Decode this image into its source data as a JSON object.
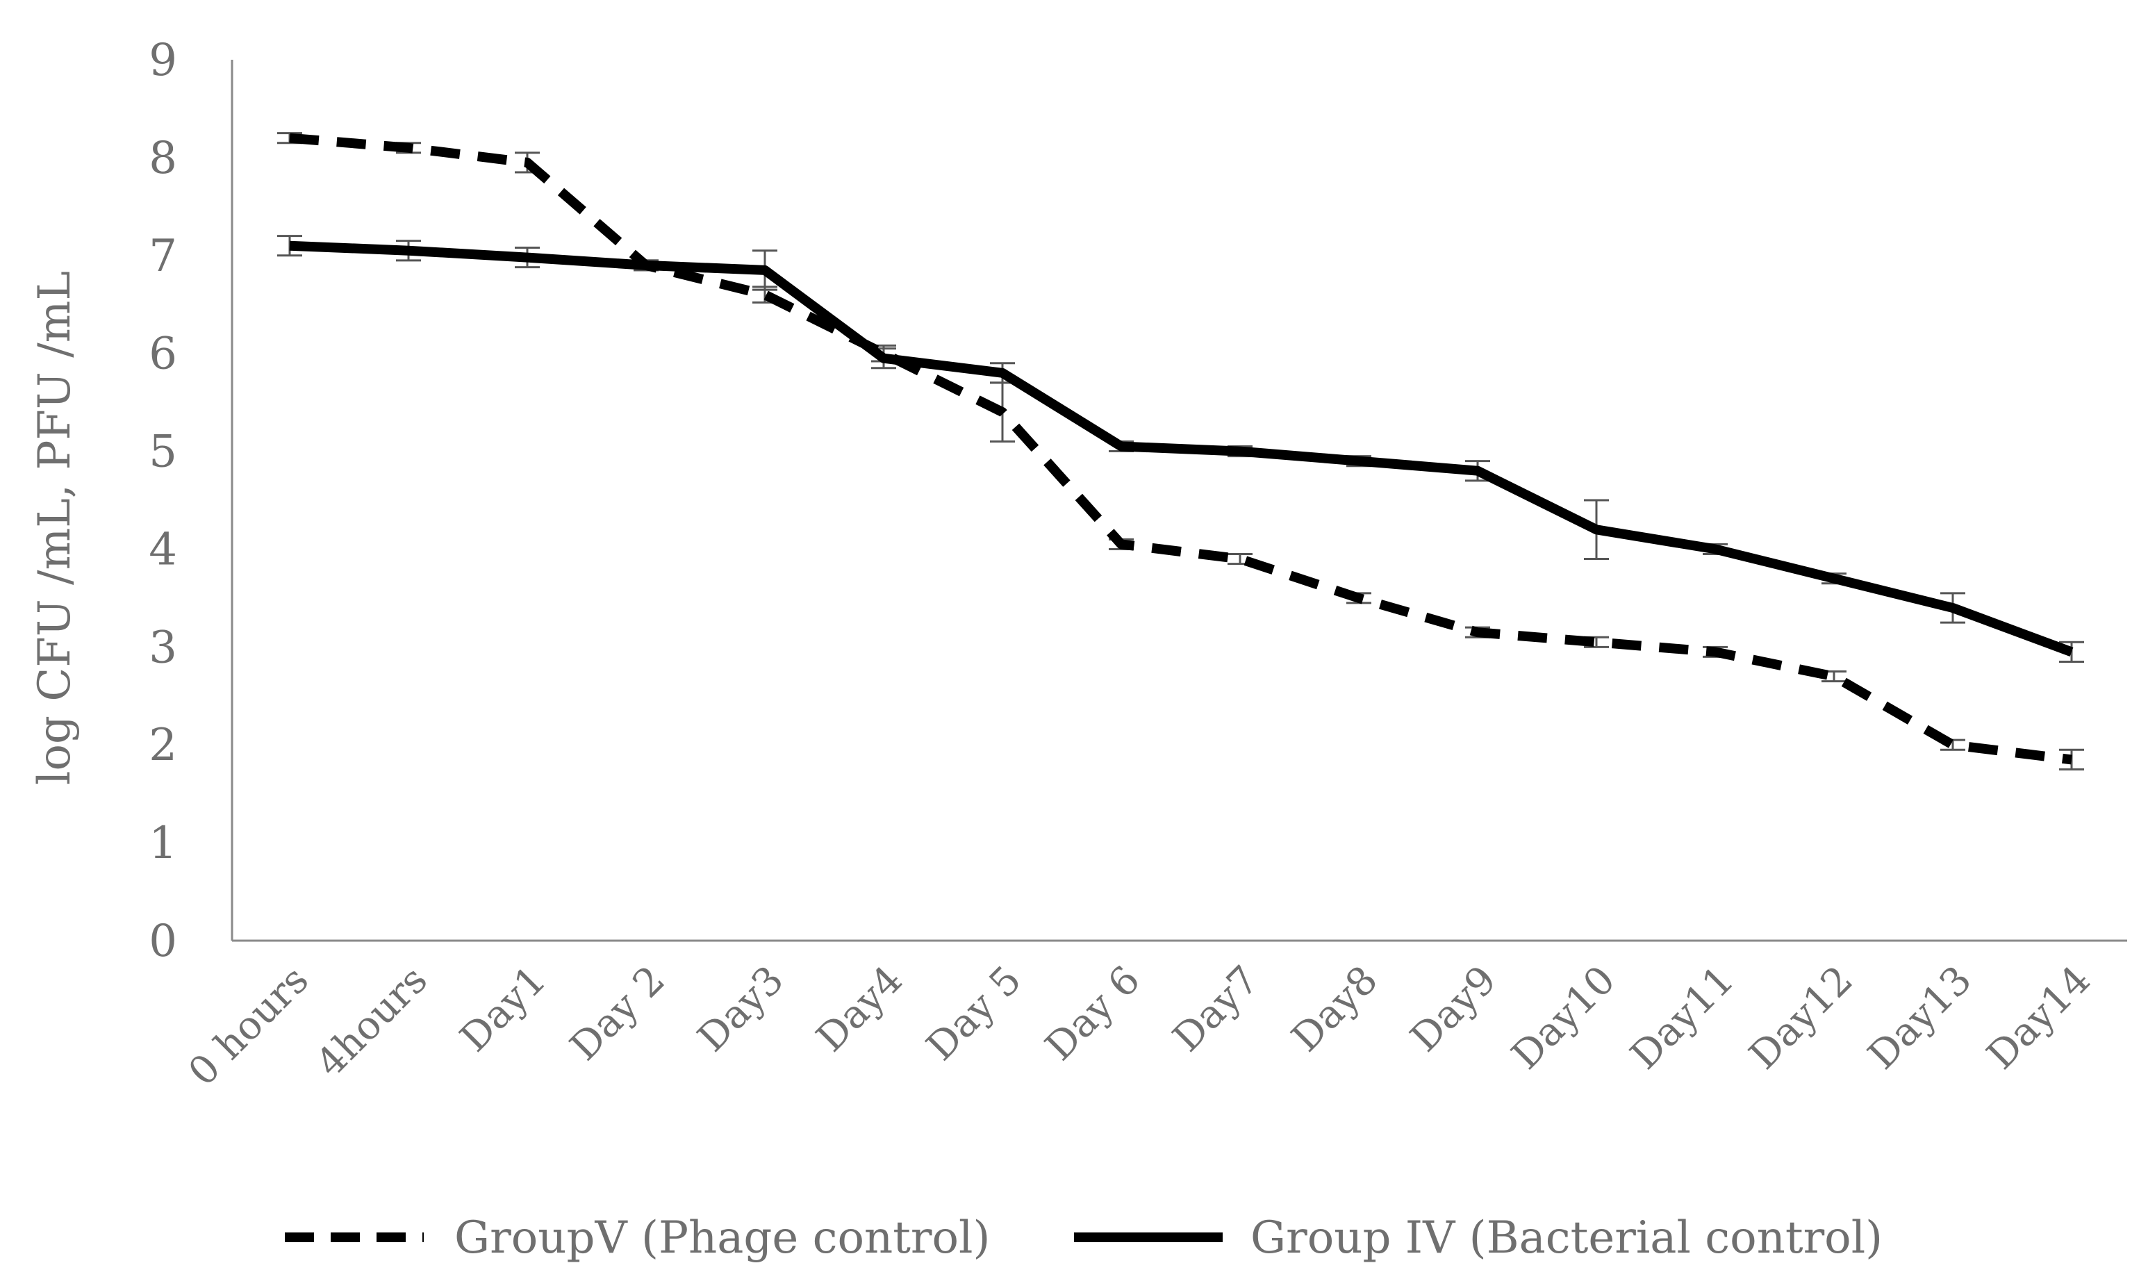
{
  "chart_data": {
    "type": "line",
    "title": "",
    "xlabel": "",
    "ylabel": "log CFU /mL, PFU /mL",
    "ylim": [
      0,
      9
    ],
    "yticks": [
      "0",
      "1",
      "2",
      "3",
      "4",
      "5",
      "6",
      "7",
      "8",
      "9"
    ],
    "grid": false,
    "legend_position": "bottom",
    "categories": [
      "0 hours",
      "4hours",
      "Day1",
      "Day 2",
      "Day3",
      "Day4",
      "Day 5",
      "Day 6",
      "Day7",
      "Day8",
      "Day9",
      "Day10",
      "Day11",
      "Day12",
      "Day13",
      "Day14"
    ],
    "series": [
      {
        "name": "GroupV (Phage control)",
        "style": "dashed",
        "color": "#000000",
        "values": [
          8.2,
          8.1,
          7.95,
          6.9,
          6.6,
          6.0,
          5.4,
          4.05,
          3.9,
          3.5,
          3.15,
          3.05,
          2.95,
          2.7,
          2.0,
          1.85
        ],
        "errors": [
          0.05,
          0.05,
          0.1,
          0.05,
          0.08,
          0.08,
          0.3,
          0.05,
          0.05,
          0.05,
          0.05,
          0.05,
          0.05,
          0.05,
          0.05,
          0.1
        ]
      },
      {
        "name": "Group IV (Bacterial control)",
        "style": "solid",
        "color": "#000000",
        "values": [
          7.1,
          7.05,
          6.98,
          6.9,
          6.85,
          5.95,
          5.8,
          5.05,
          5.0,
          4.9,
          4.8,
          4.2,
          4.0,
          3.7,
          3.4,
          2.95
        ],
        "errors": [
          0.1,
          0.1,
          0.1,
          0.05,
          0.2,
          0.1,
          0.1,
          0.05,
          0.05,
          0.05,
          0.1,
          0.3,
          0.05,
          0.05,
          0.15,
          0.1
        ]
      }
    ]
  }
}
